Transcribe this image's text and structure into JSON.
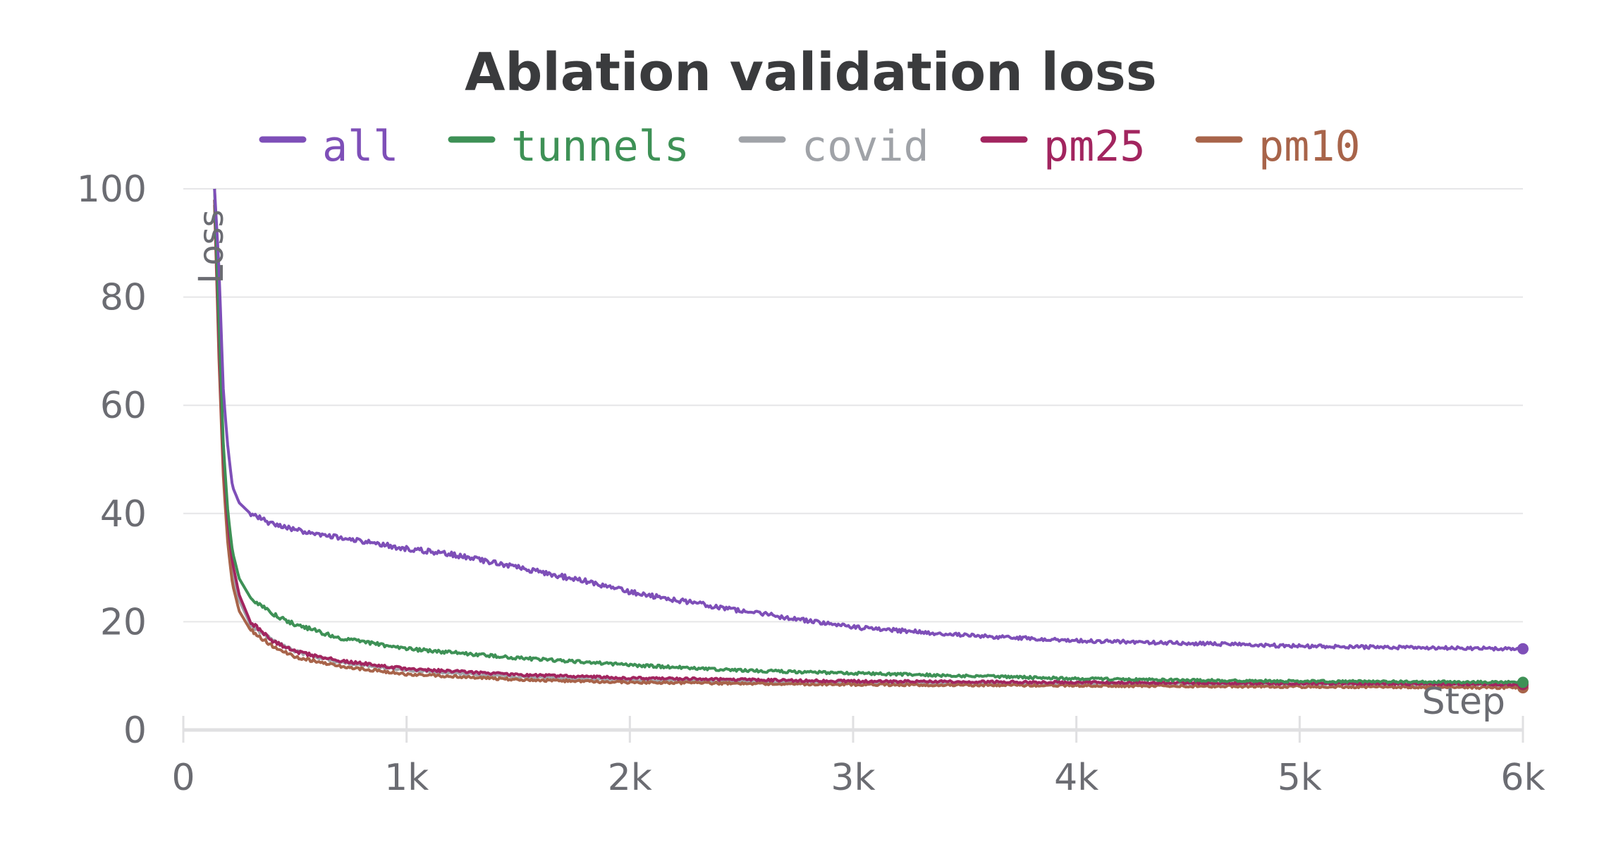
{
  "chart_data": {
    "type": "line",
    "title": "Ablation validation loss",
    "xlabel": "Step",
    "ylabel": "Loss",
    "xlim": [
      0,
      6000
    ],
    "ylim": [
      0,
      100
    ],
    "x_ticks": [
      0,
      1000,
      2000,
      3000,
      4000,
      5000,
      6000
    ],
    "x_tick_labels": [
      "0",
      "1k",
      "2k",
      "3k",
      "4k",
      "5k",
      "6k"
    ],
    "y_ticks": [
      0,
      20,
      40,
      60,
      80,
      100
    ],
    "y_tick_labels": [
      "0",
      "20",
      "40",
      "60",
      "80",
      "100"
    ],
    "grid": true,
    "legend_position": "top",
    "series": [
      {
        "name": "all",
        "color": "#7e4fb8",
        "x": [
          140,
          160,
          180,
          200,
          220,
          250,
          300,
          400,
          500,
          700,
          1000,
          1200,
          1500,
          1800,
          2000,
          2500,
          3000,
          3500,
          4000,
          4500,
          5000,
          5500,
          6000
        ],
        "y": [
          100,
          85,
          62,
          52,
          45,
          42,
          40,
          38,
          37,
          35.5,
          33.5,
          32.5,
          30,
          27.5,
          25.5,
          22,
          19,
          17.5,
          16.5,
          16,
          15.5,
          15.2,
          15
        ]
      },
      {
        "name": "tunnels",
        "color": "#3e9156",
        "x": [
          140,
          160,
          180,
          200,
          220,
          250,
          300,
          400,
          500,
          700,
          1000,
          1500,
          2000,
          2500,
          3000,
          3500,
          4000,
          4500,
          5000,
          5500,
          6000
        ],
        "y": [
          100,
          75,
          52,
          40,
          33,
          28,
          24.5,
          21.5,
          19.5,
          17,
          15,
          13.3,
          12,
          11,
          10.5,
          10,
          9.5,
          9.2,
          9,
          8.9,
          8.8
        ]
      },
      {
        "name": "covid",
        "color": "#a0a3a8",
        "x": [
          140,
          160,
          180,
          200,
          220,
          250,
          300,
          400,
          500,
          700,
          1000,
          1500,
          2000,
          2500,
          3000,
          3500,
          4000,
          4500,
          5000,
          5500,
          6000
        ],
        "y": [
          98,
          70,
          48,
          36,
          29,
          24,
          19.5,
          16.5,
          14.5,
          12.5,
          11,
          9.8,
          9.2,
          8.9,
          8.7,
          8.6,
          8.6,
          8.5,
          8.5,
          8.4,
          8.3
        ]
      },
      {
        "name": "pm25",
        "color": "#a2255f",
        "x": [
          140,
          160,
          180,
          200,
          220,
          250,
          300,
          400,
          500,
          700,
          1000,
          1500,
          2000,
          2500,
          3000,
          3500,
          4000,
          4500,
          5000,
          5500,
          6000
        ],
        "y": [
          98,
          72,
          50,
          38,
          31,
          25,
          20,
          16.5,
          14.5,
          12.8,
          11.3,
          10.2,
          9.6,
          9.3,
          9,
          8.9,
          8.8,
          8.7,
          8.6,
          8.5,
          8.4
        ]
      },
      {
        "name": "pm10",
        "color": "#a8644a",
        "x": [
          140,
          160,
          180,
          200,
          220,
          250,
          300,
          400,
          500,
          700,
          1000,
          1500,
          2000,
          2500,
          3000,
          3500,
          4000,
          4500,
          5000,
          5500,
          6000
        ],
        "y": [
          97,
          68,
          46,
          34,
          27,
          22,
          18.5,
          15.5,
          13.5,
          11.8,
          10.3,
          9.3,
          8.8,
          8.6,
          8.4,
          8.3,
          8.2,
          8.1,
          8,
          7.9,
          7.8
        ]
      }
    ]
  }
}
